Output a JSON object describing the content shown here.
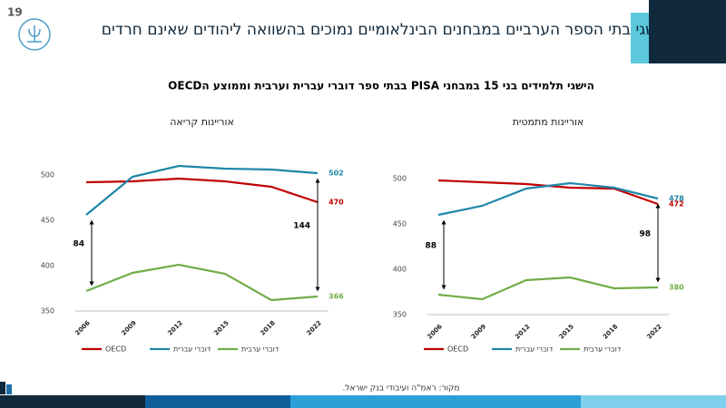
{
  "page_number": "19",
  "header": {
    "title": "הישגי בתי הספר הערביים במבחנים הבינלאומיים נמוכים בהשוואה ליהודים שאינם חרדים"
  },
  "subtitle": "הישגי תלמידים בני 15 במבחני PISA בבתי ספר דוברי עברית וערבית וממוצע הOECD",
  "source": "מקור: ראמ\"ה ועיבודי בנק ישראל.",
  "chart_data": [
    {
      "type": "line",
      "title": "אוריינות קריאה",
      "categories": [
        "2006",
        "2009",
        "2012",
        "2015",
        "2018",
        "2022"
      ],
      "series": [
        {
          "name": "OECD",
          "color": "#c00000",
          "values": [
            492,
            493,
            496,
            493,
            487,
            470
          ]
        },
        {
          "name": "דוברי עברית",
          "color": "#1f87a8",
          "values": [
            456,
            498,
            510,
            507,
            506,
            502
          ]
        },
        {
          "name": "דוברי ערבית",
          "color": "#70ad47",
          "values": [
            372,
            392,
            401,
            391,
            362,
            366
          ]
        }
      ],
      "ylim": [
        350,
        515
      ],
      "yticks": [
        350,
        400,
        450,
        500
      ],
      "annotations": [
        84,
        144
      ]
    },
    {
      "type": "line",
      "title": "אוריינות מתמטית",
      "categories": [
        "2006",
        "2009",
        "2012",
        "2015",
        "2018",
        "2022"
      ],
      "series": [
        {
          "name": "OECD",
          "color": "#c00000",
          "values": [
            498,
            496,
            494,
            490,
            489,
            472
          ]
        },
        {
          "name": "דוברי עברית",
          "color": "#1f87a8",
          "values": [
            460,
            470,
            489,
            495,
            490,
            478
          ]
        },
        {
          "name": "דוברי ערבית",
          "color": "#70ad47",
          "values": [
            372,
            367,
            388,
            391,
            379,
            380
          ]
        }
      ],
      "ylim": [
        350,
        505
      ],
      "yticks": [
        350,
        400,
        450,
        500
      ],
      "annotations": [
        88,
        98
      ]
    }
  ]
}
